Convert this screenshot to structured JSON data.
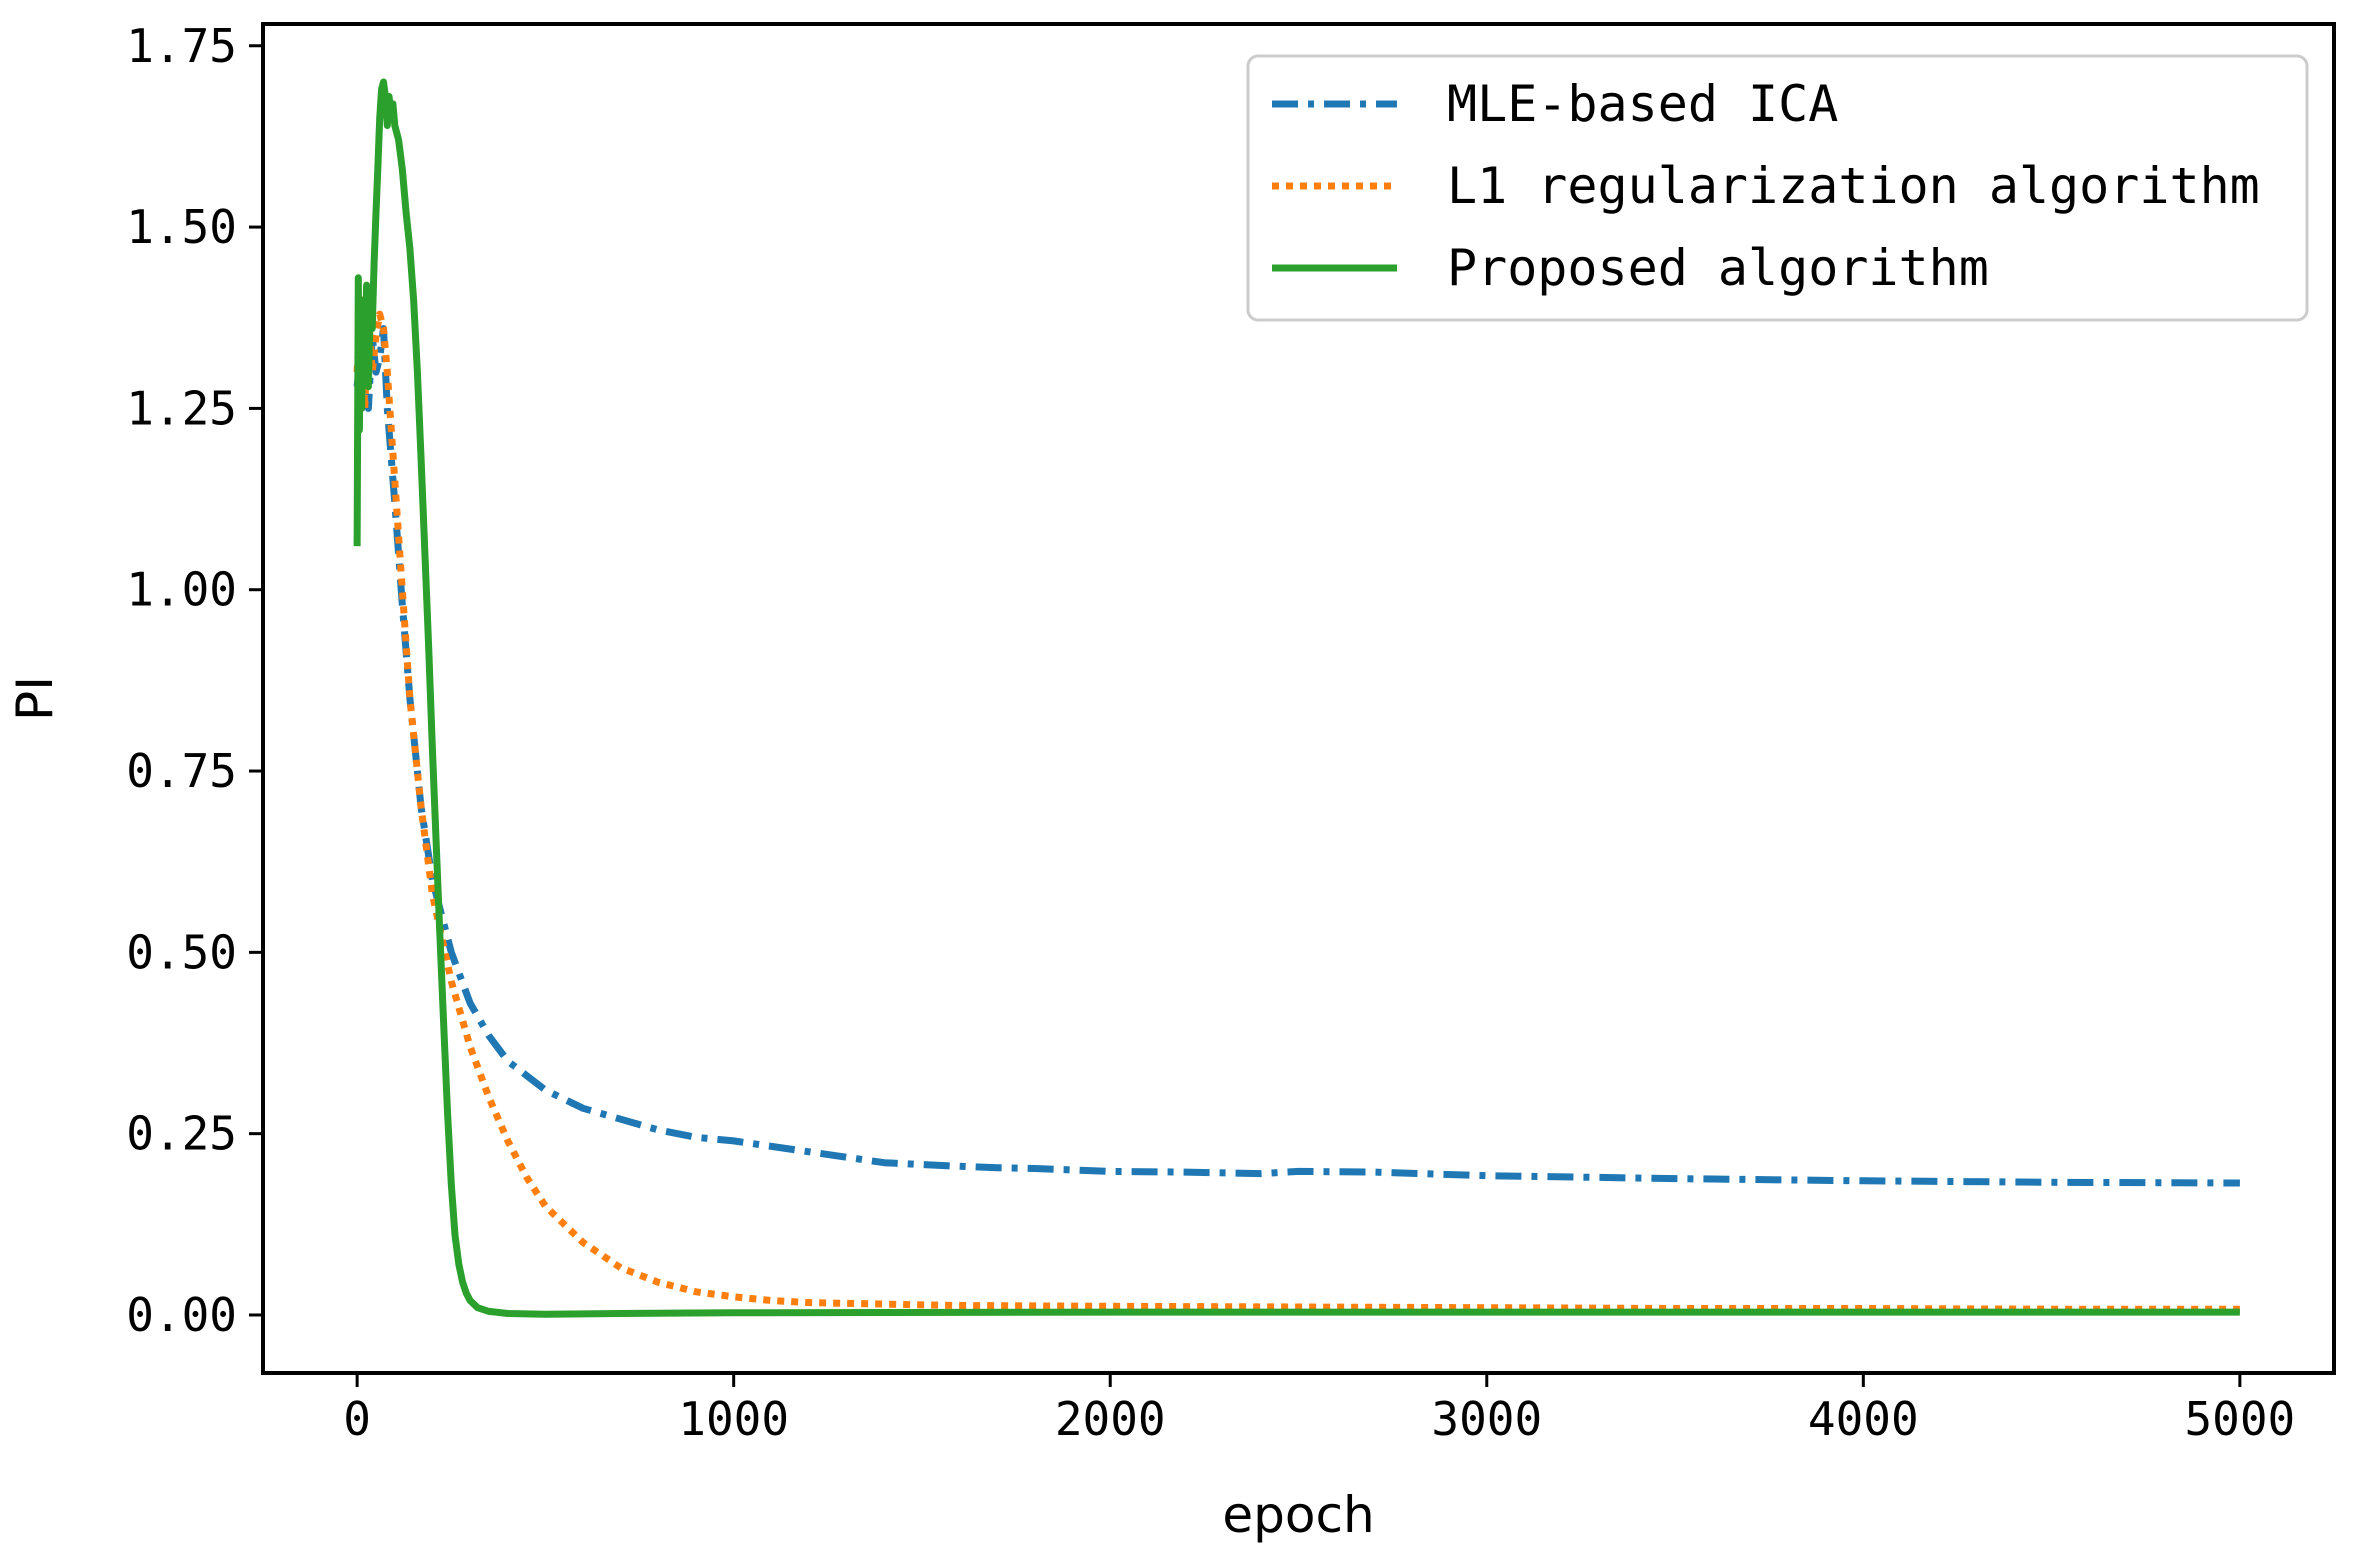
{
  "chart_data": {
    "type": "line",
    "title": "",
    "xlabel": "epoch",
    "ylabel": "PI",
    "xlim": [
      -250,
      5250
    ],
    "ylim": [
      -0.08,
      1.78
    ],
    "xticks": [
      0,
      1000,
      2000,
      3000,
      4000,
      5000
    ],
    "xtick_labels": [
      "0",
      "1000",
      "2000",
      "3000",
      "4000",
      "5000"
    ],
    "yticks": [
      0.0,
      0.25,
      0.5,
      0.75,
      1.0,
      1.25,
      1.5,
      1.75
    ],
    "ytick_labels": [
      "0.00",
      "0.25",
      "0.50",
      "0.75",
      "1.00",
      "1.25",
      "1.50",
      "1.75"
    ],
    "grid": false,
    "legend_position": "top-right",
    "series": [
      {
        "name": "MLE-based ICA",
        "color": "#1f77b4",
        "style": "dashdot",
        "x": [
          0,
          10,
          20,
          30,
          40,
          50,
          60,
          70,
          80,
          100,
          120,
          140,
          170,
          200,
          250,
          300,
          350,
          400,
          450,
          500,
          600,
          700,
          800,
          900,
          1000,
          1200,
          1400,
          1600,
          1700,
          1800,
          2000,
          2200,
          2400,
          2500,
          2700,
          3000,
          3500,
          4000,
          4500,
          5000
        ],
        "y": [
          1.28,
          1.33,
          1.38,
          1.25,
          1.35,
          1.3,
          1.32,
          1.36,
          1.25,
          1.12,
          0.98,
          0.85,
          0.7,
          0.6,
          0.5,
          0.43,
          0.385,
          0.35,
          0.33,
          0.31,
          0.285,
          0.27,
          0.255,
          0.245,
          0.24,
          0.225,
          0.21,
          0.205,
          0.203,
          0.202,
          0.198,
          0.197,
          0.195,
          0.198,
          0.197,
          0.192,
          0.188,
          0.185,
          0.183,
          0.182
        ]
      },
      {
        "name": "L1 regularization algorithm",
        "color": "#ff7f0e",
        "style": "dotted",
        "x": [
          0,
          10,
          20,
          30,
          40,
          50,
          60,
          70,
          80,
          100,
          120,
          140,
          170,
          200,
          250,
          300,
          350,
          400,
          450,
          500,
          600,
          700,
          800,
          900,
          1000,
          1100,
          1200,
          1400,
          1600,
          2000,
          2500,
          3000,
          3500,
          4000,
          4500,
          5000
        ],
        "y": [
          1.3,
          1.4,
          1.25,
          1.38,
          1.3,
          1.35,
          1.38,
          1.36,
          1.3,
          1.15,
          1.0,
          0.85,
          0.7,
          0.58,
          0.46,
          0.37,
          0.3,
          0.24,
          0.19,
          0.15,
          0.1,
          0.065,
          0.045,
          0.032,
          0.025,
          0.02,
          0.017,
          0.015,
          0.013,
          0.012,
          0.011,
          0.01,
          0.009,
          0.009,
          0.008,
          0.008
        ]
      },
      {
        "name": "Proposed algorithm",
        "color": "#2ca02c",
        "style": "solid",
        "x": [
          0,
          3,
          6,
          9,
          12,
          15,
          20,
          25,
          30,
          35,
          40,
          45,
          50,
          55,
          60,
          65,
          70,
          75,
          80,
          85,
          90,
          95,
          100,
          110,
          120,
          130,
          140,
          150,
          160,
          170,
          180,
          190,
          200,
          210,
          220,
          230,
          240,
          250,
          260,
          270,
          280,
          290,
          300,
          320,
          350,
          400,
          500,
          700,
          1000,
          2000,
          3000,
          4000,
          5000
        ],
        "y": [
          1.06,
          1.43,
          1.22,
          1.4,
          1.25,
          1.38,
          1.3,
          1.42,
          1.28,
          1.4,
          1.36,
          1.45,
          1.52,
          1.58,
          1.65,
          1.69,
          1.7,
          1.68,
          1.64,
          1.68,
          1.65,
          1.67,
          1.64,
          1.62,
          1.58,
          1.52,
          1.47,
          1.4,
          1.3,
          1.18,
          1.05,
          0.92,
          0.78,
          0.65,
          0.52,
          0.4,
          0.28,
          0.18,
          0.11,
          0.07,
          0.045,
          0.03,
          0.02,
          0.01,
          0.005,
          0.002,
          0.001,
          0.002,
          0.003,
          0.004,
          0.004,
          0.004,
          0.004
        ]
      }
    ]
  }
}
